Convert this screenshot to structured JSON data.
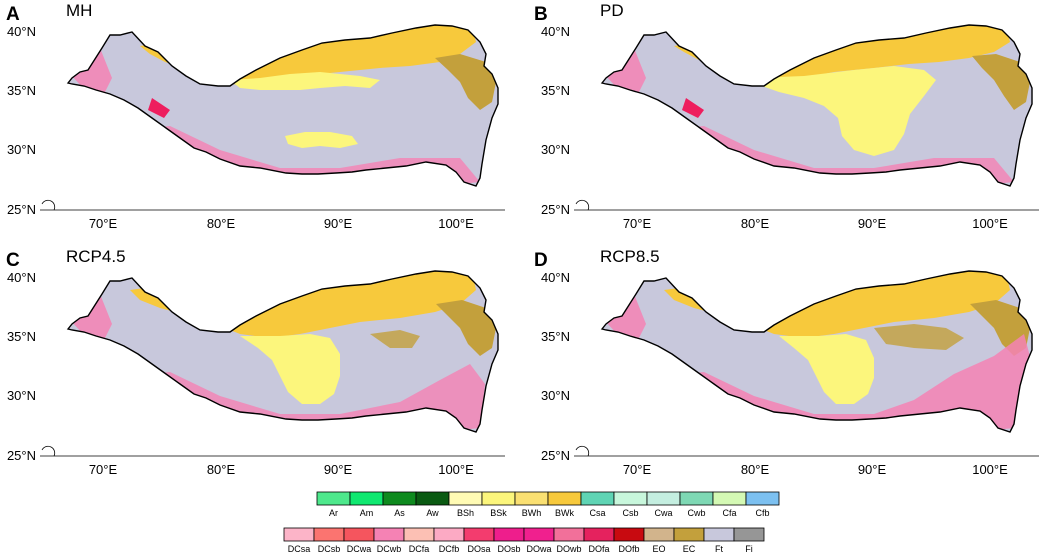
{
  "panels": [
    {
      "letter": "A",
      "title": "MH"
    },
    {
      "letter": "B",
      "title": "PD"
    },
    {
      "letter": "C",
      "title": "RCP4.5"
    },
    {
      "letter": "D",
      "title": "RCP8.5"
    }
  ],
  "lat_ticks": [
    "40°N",
    "35°N",
    "30°N",
    "25°N"
  ],
  "lon_ticks": [
    "70°E",
    "80°E",
    "90°E",
    "100°E"
  ],
  "legend_row1": [
    {
      "code": "Ar",
      "color": "#4ee88c"
    },
    {
      "code": "Am",
      "color": "#10e870"
    },
    {
      "code": "As",
      "color": "#0e8a1e"
    },
    {
      "code": "Aw",
      "color": "#0a5a12"
    },
    {
      "code": "BSh",
      "color": "#fffbb4"
    },
    {
      "code": "BSk",
      "color": "#fcf67c"
    },
    {
      "code": "BWh",
      "color": "#fae072"
    },
    {
      "code": "BWk",
      "color": "#f7c93c"
    },
    {
      "code": "Csa",
      "color": "#5fd4b4"
    },
    {
      "code": "Csb",
      "color": "#c8f7dc"
    },
    {
      "code": "Cwa",
      "color": "#c4eee0"
    },
    {
      "code": "Cwb",
      "color": "#7ed8b4"
    },
    {
      "code": "Cfa",
      "color": "#d4f9b4"
    },
    {
      "code": "Cfb",
      "color": "#7cc0f0"
    }
  ],
  "legend_row2": [
    {
      "code": "DCsa",
      "color": "#fcb4c8"
    },
    {
      "code": "DCsb",
      "color": "#fb7470"
    },
    {
      "code": "DCwa",
      "color": "#f5555e"
    },
    {
      "code": "DCwb",
      "color": "#f582b4"
    },
    {
      "code": "DCfa",
      "color": "#fcc0b4"
    },
    {
      "code": "DCfb",
      "color": "#fcaac4"
    },
    {
      "code": "DOsa",
      "color": "#f33c6e"
    },
    {
      "code": "DOsb",
      "color": "#ee1e8c"
    },
    {
      "code": "DOwa",
      "color": "#f0208e"
    },
    {
      "code": "DOwb",
      "color": "#f2709a"
    },
    {
      "code": "DOfa",
      "color": "#e5225e"
    },
    {
      "code": "DOfb",
      "color": "#c80a10"
    },
    {
      "code": "EO",
      "color": "#d2b48c"
    },
    {
      "code": "EC",
      "color": "#c3a03c"
    },
    {
      "code": "Ft",
      "color": "#c8c8dc"
    },
    {
      "code": "Fi",
      "color": "#969696"
    }
  ],
  "map_colors": {
    "ice": "#c8c8dc",
    "cold_desert": "#f7c93c",
    "steppe": "#fcf67c",
    "tundra_ec": "#c3a03c",
    "pink": "#f582b4",
    "red": "#ee1e5e"
  }
}
